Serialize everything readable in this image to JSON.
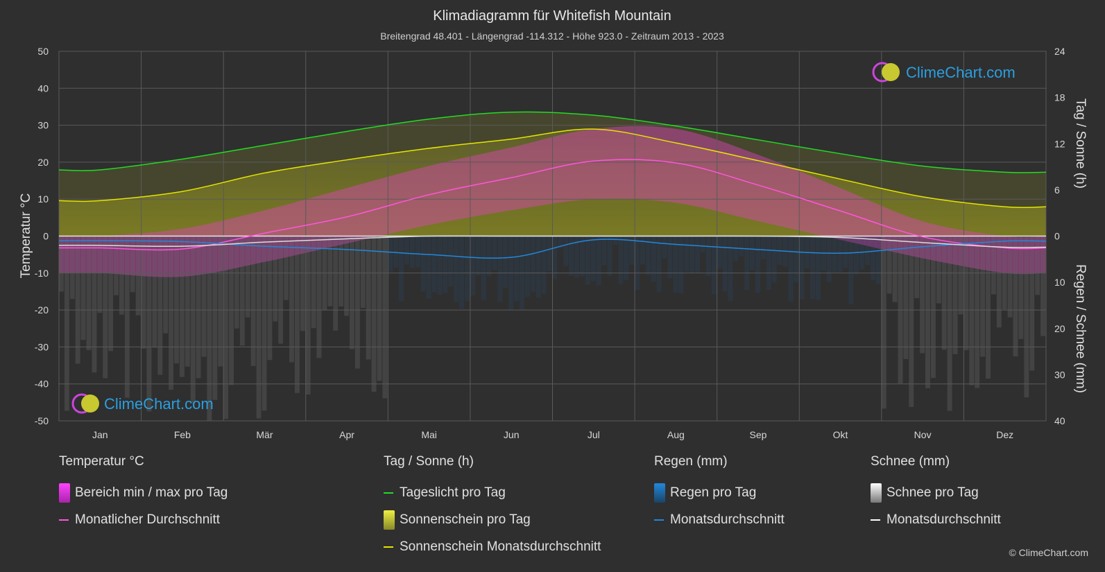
{
  "title": "Klimadiagramm für Whitefish Mountain",
  "subtitle": "Breitengrad 48.401 - Längengrad -114.312 - Höhe 923.0 - Zeitraum 2013 - 2023",
  "brand": "ClimeChart.com",
  "copyright": "© ClimeChart.com",
  "colors": {
    "background": "#2f2f2f",
    "daylight": "#22dd22",
    "sunshine": "#e6e600",
    "temperature": "#ff55dd",
    "rain": "#2288dd",
    "snow": "#dddddd",
    "brand": "#2a9fe0"
  },
  "legend": {
    "temperature": {
      "title": "Temperatur °C",
      "range": "Bereich min / max pro Tag",
      "avg": "Monatlicher Durchschnitt"
    },
    "sun": {
      "title": "Tag / Sonne (h)",
      "daylight": "Tageslicht pro Tag",
      "sunshine": "Sonnenschein pro Tag",
      "sunshine_avg": "Sonnenschein Monatsdurchschnitt"
    },
    "rain": {
      "title": "Regen (mm)",
      "per_day": "Regen pro Tag",
      "avg": "Monatsdurchschnitt"
    },
    "snow": {
      "title": "Schnee (mm)",
      "per_day": "Schnee pro Tag",
      "avg": "Monatsdurchschnitt"
    }
  },
  "chart_data": {
    "type": "line",
    "categories": [
      "Jan",
      "Feb",
      "Mär",
      "Apr",
      "Mai",
      "Jun",
      "Jul",
      "Aug",
      "Sep",
      "Okt",
      "Nov",
      "Dez"
    ],
    "y_left": {
      "label": "Temperatur °C",
      "range": [
        -50,
        50
      ],
      "ticks": [
        50,
        40,
        30,
        20,
        10,
        0,
        -10,
        -20,
        -30,
        -40,
        -50
      ]
    },
    "y_right_top": {
      "label": "Tag / Sonne (h)",
      "range": [
        0,
        24
      ],
      "ticks": [
        24,
        18,
        12,
        6,
        0
      ]
    },
    "y_right_bottom": {
      "label": "Regen / Schnee (mm)",
      "range": [
        0,
        40
      ],
      "ticks": [
        10,
        20,
        30,
        40
      ]
    },
    "grid": true,
    "series": [
      {
        "name": "Tageslicht pro Tag",
        "axis": "hours",
        "values": [
          8.6,
          10.0,
          11.8,
          13.6,
          15.2,
          16.1,
          15.7,
          14.3,
          12.5,
          10.7,
          9.1,
          8.3
        ]
      },
      {
        "name": "Sonnenschein Monatsdurchschnitt",
        "axis": "hours",
        "values": [
          4.6,
          5.8,
          8.2,
          9.9,
          11.4,
          12.6,
          13.9,
          12.1,
          9.8,
          7.4,
          5.1,
          3.8
        ]
      },
      {
        "name": "Monatlicher Durchschnitt",
        "axis": "temperature",
        "values": [
          -3.2,
          -3.5,
          0.8,
          5.2,
          11.2,
          15.8,
          20.3,
          19.8,
          13.8,
          6.8,
          -0.2,
          -3.2
        ]
      },
      {
        "name": "Regen Monatsdurchschnitt",
        "axis": "precipitation",
        "values": [
          1.0,
          1.2,
          2.2,
          2.9,
          4.0,
          4.6,
          0.8,
          1.8,
          2.9,
          3.7,
          2.3,
          1.1
        ]
      },
      {
        "name": "Schnee Monatsdurchschnitt",
        "axis": "precipitation",
        "values": [
          2.0,
          2.2,
          1.3,
          0.6,
          0.0,
          0.0,
          0.0,
          0.0,
          0.0,
          0.3,
          1.4,
          2.4
        ]
      }
    ],
    "temperature_range": {
      "min": [
        -10,
        -11,
        -7,
        -2,
        3,
        7,
        10,
        9,
        4,
        -1,
        -6,
        -10
      ],
      "max": [
        0,
        2,
        7,
        13,
        19,
        24,
        29,
        29,
        22,
        13,
        4,
        0
      ]
    }
  }
}
